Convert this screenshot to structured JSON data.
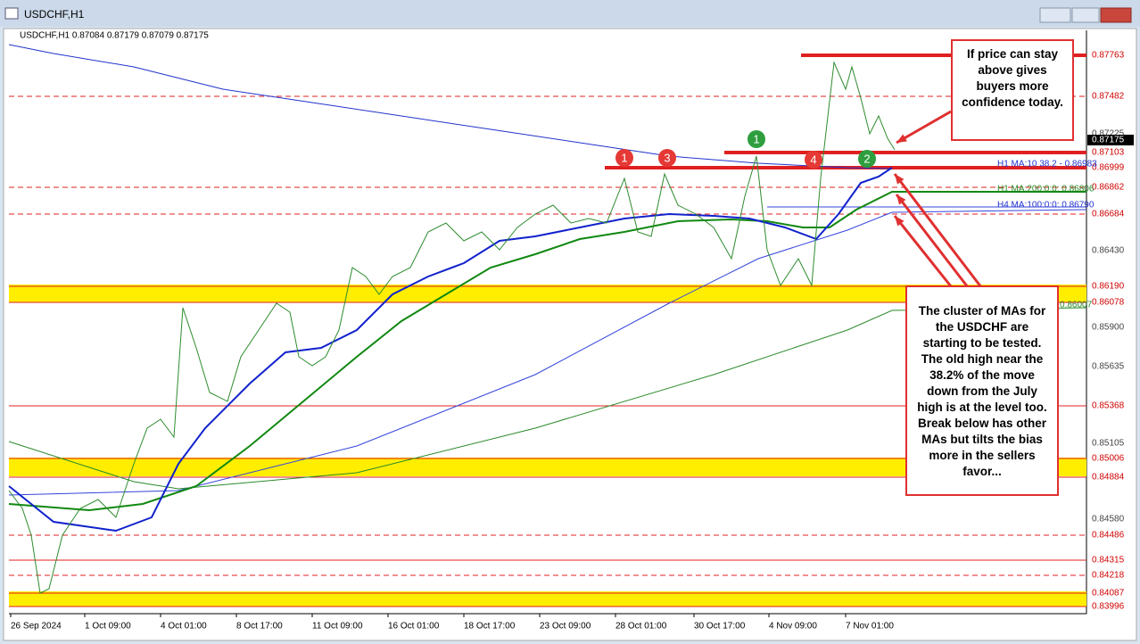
{
  "window": {
    "title": "USDCHF,H1"
  },
  "chart": {
    "info": "USDCHF,H1  0.87084 0.87179 0.87079 0.87175",
    "price_labels": [
      "0.87763",
      "0.87482",
      "0.87225",
      "0.87103",
      "0.86999",
      "0.86862",
      "0.86684",
      "0.86430",
      "0.86190",
      "0.86078",
      "0.85900",
      "0.85635",
      "0.85368",
      "0.85105",
      "0.85006",
      "0.84884",
      "0.84580",
      "0.84486",
      "0.84315",
      "0.84218",
      "0.84087",
      "0.83996"
    ],
    "current_price": "0.87175",
    "level_tags": [
      "H1 MA:10 38.2 - 0.86983",
      "H1 MA:200:0:0: 0.86806",
      "H4 MA:100:0:0: 0.86790",
      "0.86007"
    ],
    "date_labels": [
      "26 Sep 2024",
      "1 Oct 09:00",
      "4 Oct 01:00",
      "8 Oct 17:00",
      "11 Oct 09:00",
      "16 Oct 01:00",
      "18 Oct 17:00",
      "23 Oct 09:00",
      "28 Oct 01:00",
      "30 Oct 17:00",
      "4 Nov 09:00",
      "7 Nov 01:00"
    ],
    "markers": [
      "1",
      "3",
      "1",
      "4",
      "2"
    ],
    "annotations": [
      "If price can stay above gives buyers more confidence today.",
      "The cluster of MAs for the USDCHF are starting to be tested. The old  high near the 38.2% of the move down from the July high is at the level too.  Break below has other MAs but tilts the bias more in the sellers favor..."
    ]
  }
}
